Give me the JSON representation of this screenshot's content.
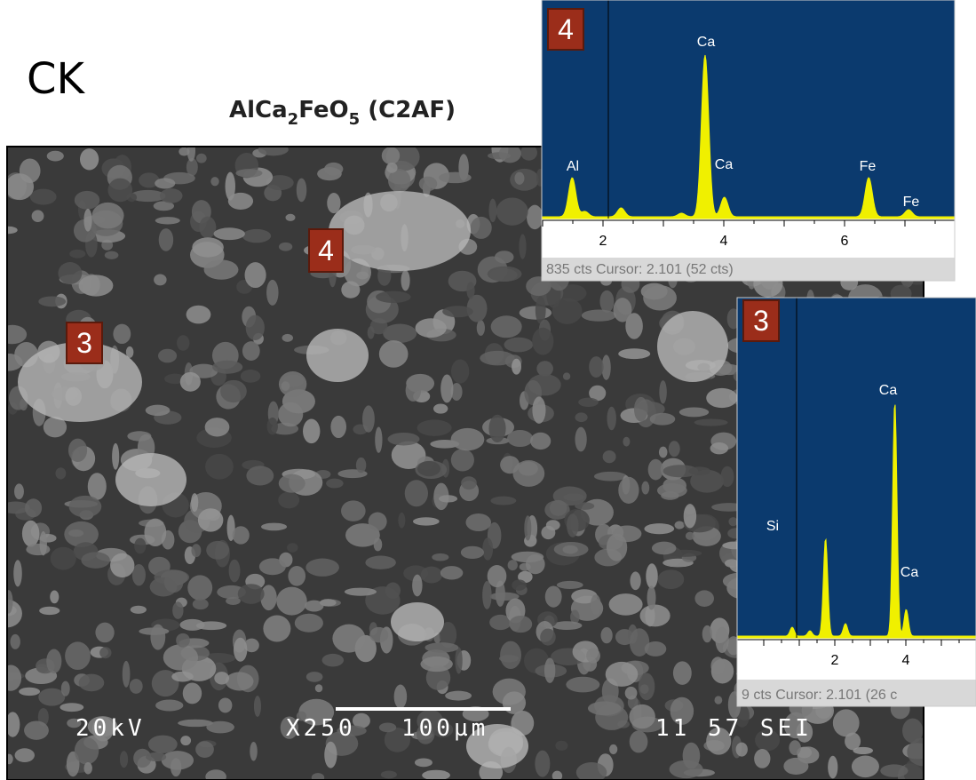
{
  "label": "CK",
  "compound": {
    "prefix": "AlCa",
    "sub1": "2",
    "mid": "FeO",
    "sub2": "5",
    "suffix": " (C2AF)"
  },
  "sem": {
    "markers": [
      "4",
      "3"
    ],
    "footer": {
      "voltage": "20kV",
      "magnification": "X250",
      "scale": "100µm",
      "id": "11 57 SEI"
    }
  },
  "spectrum_4": {
    "marker": "4",
    "peaks": [
      "Ca",
      "Al",
      "Ca",
      "Fe",
      "Fe"
    ],
    "ticks": [
      "2",
      "4",
      "6"
    ],
    "status": "835 cts Cursor: 2.101  (52 cts)"
  },
  "spectrum_3": {
    "marker": "3",
    "peaks": [
      "Ca",
      "Si",
      "Ca"
    ],
    "ticks": [
      "2",
      "4"
    ],
    "status": "9 cts Cursor: 2.101  (26 c"
  }
}
